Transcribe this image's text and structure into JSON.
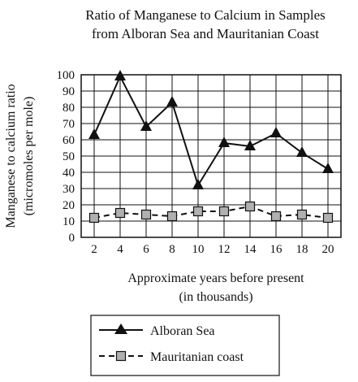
{
  "chart_data": {
    "type": "line",
    "title_lines": [
      "Ratio of Manganese to Calcium in Samples",
      "from Alboran Sea and Mauritanian Coast"
    ],
    "xlabel_lines": [
      "Approximate years before present",
      "(in thousands)"
    ],
    "ylabel_lines": [
      "Manganese to calcium ratio",
      "(micromoles per mole)"
    ],
    "x": [
      2,
      4,
      6,
      8,
      10,
      12,
      14,
      16,
      18,
      20
    ],
    "xlim": [
      1,
      21
    ],
    "ylim": [
      0,
      100
    ],
    "yticks": [
      0,
      10,
      20,
      30,
      40,
      50,
      60,
      70,
      80,
      90,
      100
    ],
    "grid": true,
    "legend_position": "bottom",
    "series": [
      {
        "name": "Alboran Sea",
        "style": "solid",
        "marker": "triangle",
        "color": "#111111",
        "values": [
          63,
          99,
          68,
          83,
          32,
          58,
          56,
          64,
          52,
          42
        ]
      },
      {
        "name": "Mauritanian coast",
        "style": "dashed",
        "marker": "square",
        "color": "#111111",
        "marker_fill": "#b0b0b0",
        "values": [
          12,
          15,
          14,
          13,
          16,
          16,
          19,
          13,
          14,
          12
        ]
      }
    ]
  }
}
